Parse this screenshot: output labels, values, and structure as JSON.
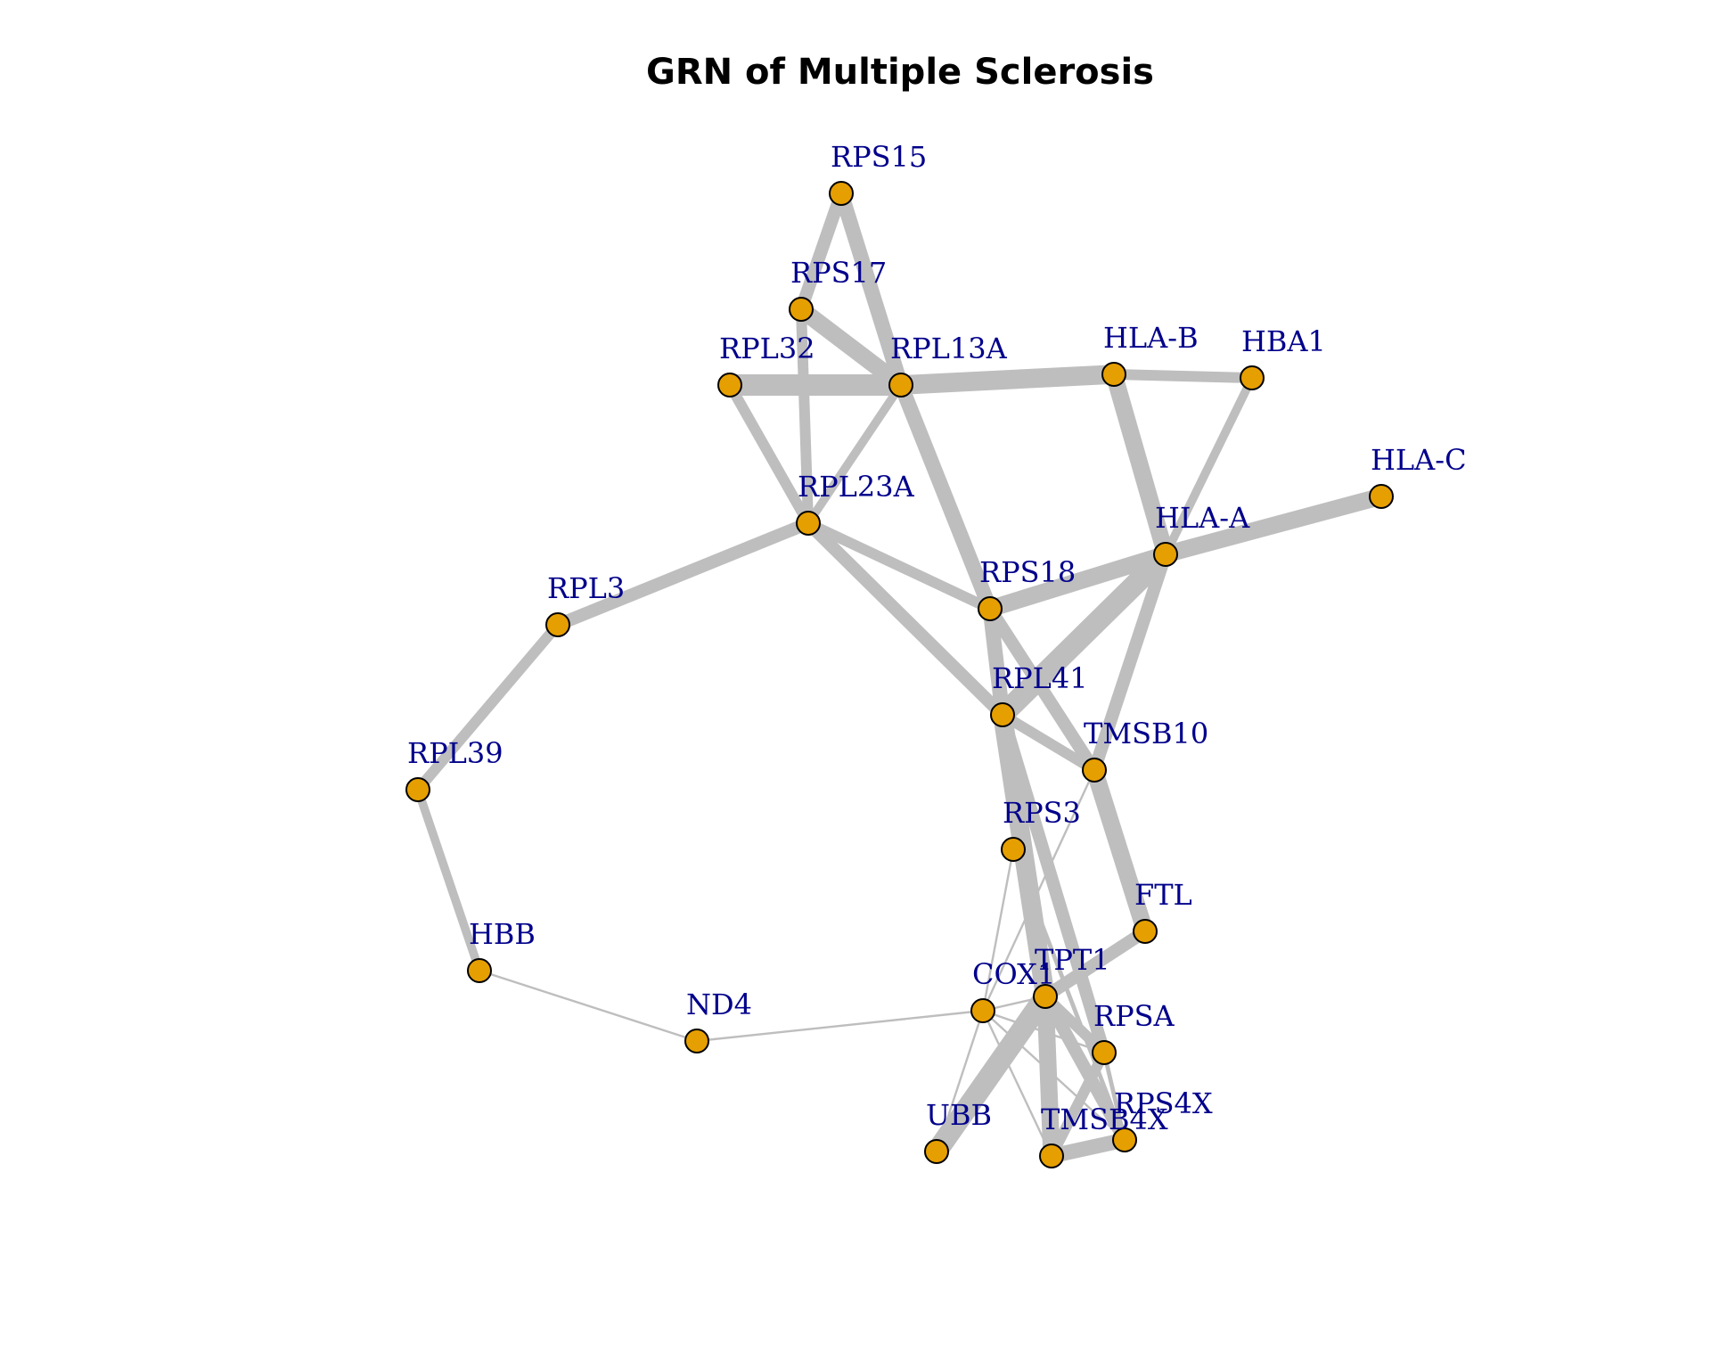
{
  "title": "GRN of Multiple Sclerosis",
  "colors": {
    "node_fill": "#E69F00",
    "node_stroke": "#000000",
    "edge": "#BEBEBE",
    "label": "#00008B"
  },
  "nodes": [
    {
      "id": "RPS15",
      "label": "RPS15"
    },
    {
      "id": "RPS17",
      "label": "RPS17"
    },
    {
      "id": "RPL32",
      "label": "RPL32"
    },
    {
      "id": "RPL13A",
      "label": "RPL13A"
    },
    {
      "id": "HLA-B",
      "label": "HLA-B"
    },
    {
      "id": "HBA1",
      "label": "HBA1"
    },
    {
      "id": "HLA-C",
      "label": "HLA-C"
    },
    {
      "id": "RPL23A",
      "label": "RPL23A"
    },
    {
      "id": "HLA-A",
      "label": "HLA-A"
    },
    {
      "id": "RPL3",
      "label": "RPL3"
    },
    {
      "id": "RPS18",
      "label": "RPS18"
    },
    {
      "id": "RPL41",
      "label": "RPL41"
    },
    {
      "id": "TMSB10",
      "label": "TMSB10"
    },
    {
      "id": "RPL39",
      "label": "RPL39"
    },
    {
      "id": "RPS3",
      "label": "RPS3"
    },
    {
      "id": "FTL",
      "label": "FTL"
    },
    {
      "id": "HBB",
      "label": "HBB"
    },
    {
      "id": "TPT1",
      "label": "TPT1"
    },
    {
      "id": "COX1",
      "label": "COX1"
    },
    {
      "id": "RPSA",
      "label": "RPSA"
    },
    {
      "id": "ND4",
      "label": "ND4"
    },
    {
      "id": "RPS4X",
      "label": "RPS4X"
    },
    {
      "id": "UBB",
      "label": "UBB"
    },
    {
      "id": "TMSB4X",
      "label": "TMSB4X"
    }
  ],
  "edges": [
    {
      "source": "RPS15",
      "target": "RPS17",
      "weight": 6
    },
    {
      "source": "RPS15",
      "target": "RPL13A",
      "weight": 7
    },
    {
      "source": "RPS17",
      "target": "RPL13A",
      "weight": 8
    },
    {
      "source": "RPS17",
      "target": "RPL23A",
      "weight": 5
    },
    {
      "source": "RPL32",
      "target": "RPL13A",
      "weight": 10
    },
    {
      "source": "RPL32",
      "target": "RPL23A",
      "weight": 5
    },
    {
      "source": "RPL13A",
      "target": "HLA-B",
      "weight": 9
    },
    {
      "source": "RPL13A",
      "target": "RPL23A",
      "weight": 4
    },
    {
      "source": "RPL13A",
      "target": "RPS18",
      "weight": 7
    },
    {
      "source": "HLA-B",
      "target": "HBA1",
      "weight": 5
    },
    {
      "source": "HLA-B",
      "target": "HLA-A",
      "weight": 8
    },
    {
      "source": "HBA1",
      "target": "HLA-A",
      "weight": 4
    },
    {
      "source": "HLA-C",
      "target": "HLA-A",
      "weight": 8
    },
    {
      "source": "HLA-A",
      "target": "RPS18",
      "weight": 8
    },
    {
      "source": "HLA-A",
      "target": "RPL41",
      "weight": 10
    },
    {
      "source": "HLA-A",
      "target": "TMSB10",
      "weight": 6
    },
    {
      "source": "RPL23A",
      "target": "RPL3",
      "weight": 6
    },
    {
      "source": "RPL23A",
      "target": "RPS18",
      "weight": 5
    },
    {
      "source": "RPL23A",
      "target": "RPL41",
      "weight": 6
    },
    {
      "source": "RPL3",
      "target": "RPL39",
      "weight": 5
    },
    {
      "source": "RPL39",
      "target": "HBB",
      "weight": 4
    },
    {
      "source": "RPS18",
      "target": "RPL41",
      "weight": 7
    },
    {
      "source": "RPS18",
      "target": "TMSB10",
      "weight": 6
    },
    {
      "source": "RPL41",
      "target": "TMSB10",
      "weight": 5
    },
    {
      "source": "RPL41",
      "target": "TPT1",
      "weight": 9
    },
    {
      "source": "RPL41",
      "target": "RPSA",
      "weight": 6
    },
    {
      "source": "TMSB10",
      "target": "FTL",
      "weight": 8
    },
    {
      "source": "TMSB10",
      "target": "COX1",
      "weight": 1
    },
    {
      "source": "FTL",
      "target": "TPT1",
      "weight": 6
    },
    {
      "source": "HBB",
      "target": "ND4",
      "weight": 1
    },
    {
      "source": "ND4",
      "target": "COX1",
      "weight": 1
    },
    {
      "source": "RPS3",
      "target": "COX1",
      "weight": 1
    },
    {
      "source": "COX1",
      "target": "UBB",
      "weight": 1
    },
    {
      "source": "COX1",
      "target": "TMSB4X",
      "weight": 1
    },
    {
      "source": "COX1",
      "target": "RPS4X",
      "weight": 1
    },
    {
      "source": "COX1",
      "target": "RPSA",
      "weight": 1
    },
    {
      "source": "COX1",
      "target": "TPT1",
      "weight": 1
    },
    {
      "source": "TPT1",
      "target": "UBB",
      "weight": 10
    },
    {
      "source": "TPT1",
      "target": "TMSB4X",
      "weight": 8
    },
    {
      "source": "TPT1",
      "target": "RPS4X",
      "weight": 6
    },
    {
      "source": "TPT1",
      "target": "RPSA",
      "weight": 5
    },
    {
      "source": "RPSA",
      "target": "TMSB4X",
      "weight": 5
    },
    {
      "source": "RPSA",
      "target": "RPS4X",
      "weight": 2
    },
    {
      "source": "TMSB4X",
      "target": "RPS4X",
      "weight": 7
    },
    {
      "source": "RPS3",
      "target": "RPS4X",
      "weight": 2
    }
  ]
}
